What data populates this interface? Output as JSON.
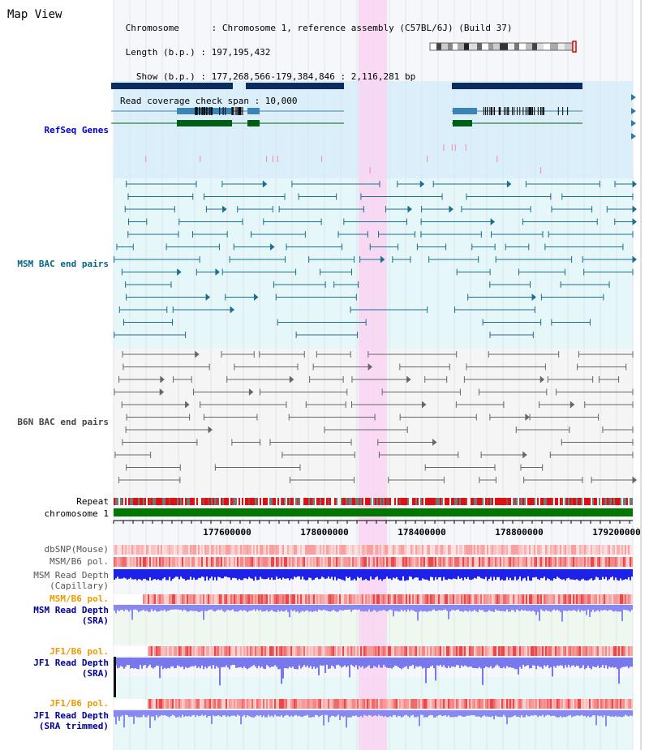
{
  "header": {
    "title": "Map View",
    "lines": [
      " Chromosome      : Chromosome 1, reference assembly (C57BL/6J) (Build 37)",
      " Length (b.p.) : 197,195,432",
      "   Show (b.p.) : 177,268,566-179,384,846 : 2,116,281 bp",
      "Read coverage check span : 10,000"
    ]
  },
  "tracks": {
    "refseq": "RefSeq Genes",
    "msm_bac": "MSM BAC end pairs",
    "b6n_bac": "B6N BAC end pairs",
    "repeat": "Repeat",
    "chromosome": "chromosome 1",
    "dbsnp": "dbSNP(Mouse)",
    "msm_b6_pol": "MSM/B6 pol.",
    "msm_depth_cap_1": "MSM Read Depth",
    "msm_depth_cap_2": "(Capillary)",
    "msm_b6_pol2": "MSM/B6 pol.",
    "msm_depth_sra_1": "MSM Read Depth",
    "msm_depth_sra_2": "(SRA)",
    "jf1_pol": "JF1/B6 pol.",
    "jf1_depth_1": "JF1 Read Depth",
    "jf1_depth_2": "(SRA)",
    "jf1_pol2": "JF1/B6 pol.",
    "jf1_trim_1": "JF1 Read Depth",
    "jf1_trim_2": "(SRA trimmed)"
  },
  "axis": {
    "ticks": [
      "177600000",
      "178000000",
      "178400000",
      "178800000",
      "179200000"
    ]
  },
  "colors": {
    "refseq_label": "#0000cc",
    "msm_label": "#006688",
    "b6n_label": "#444444",
    "pol_orange": "#ee9900",
    "depth_blue": "#000099",
    "highlight": "#f9d4f2",
    "chrom_green": "#007700"
  }
}
